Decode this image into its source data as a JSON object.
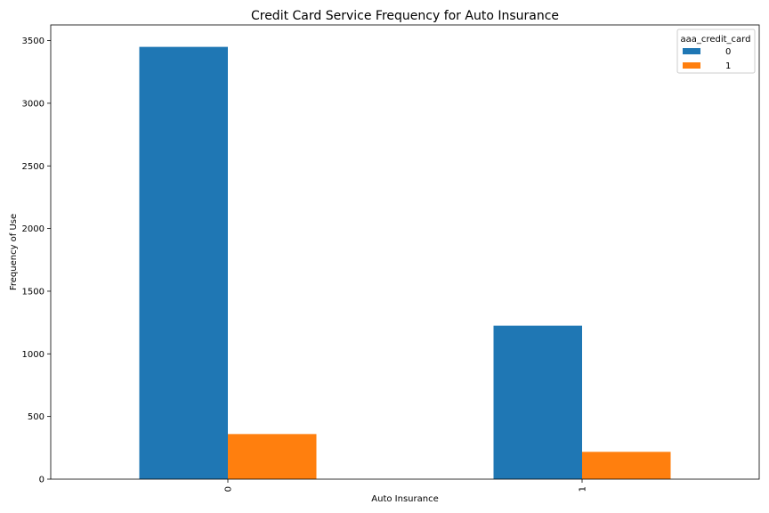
{
  "chart_data": {
    "type": "bar",
    "title": "Credit Card Service Frequency for Auto Insurance",
    "xlabel": "Auto Insurance",
    "ylabel": "Frequency of Use",
    "categories": [
      "0",
      "1"
    ],
    "series": [
      {
        "name": "0",
        "color": "#1f77b4",
        "values": [
          3450,
          1225
        ]
      },
      {
        "name": "1",
        "color": "#ff7f0e",
        "values": [
          360,
          218
        ]
      }
    ],
    "ylim": [
      0,
      3625
    ],
    "yticks": [
      0,
      500,
      1000,
      1500,
      2000,
      2500,
      3000,
      3500
    ],
    "grid": false,
    "legend": {
      "title": "aaa_credit_card",
      "placement": "top-right"
    }
  }
}
